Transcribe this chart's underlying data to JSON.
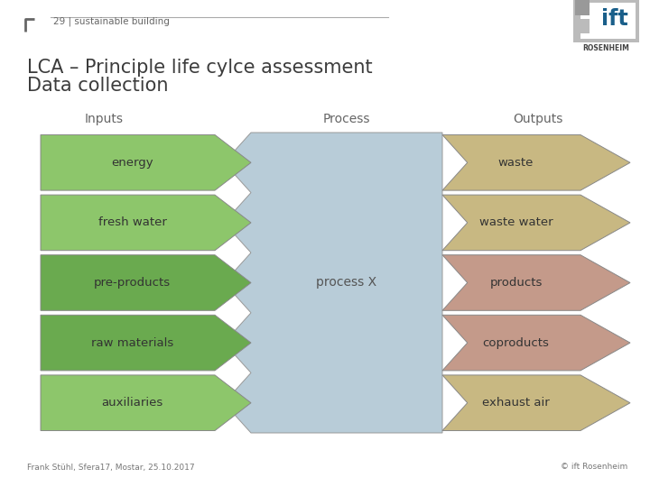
{
  "title_line1": "LCA – Principle life cylce assessment",
  "title_line2": "Data collection",
  "header_text": "29 | sustainable building",
  "inputs_label": "Inputs",
  "process_label": "Process",
  "outputs_label": "Outputs",
  "process_center_label": "process X",
  "input_items": [
    "energy",
    "fresh water",
    "pre-products",
    "raw materials",
    "auxiliaries"
  ],
  "output_items": [
    "waste",
    "waste water",
    "products",
    "coproducts",
    "exhaust air"
  ],
  "input_colors": [
    "#8dc66b",
    "#8dc66b",
    "#6aaa4f",
    "#6aaa4f",
    "#8dc66b"
  ],
  "output_colors": [
    "#c8b882",
    "#c8b882",
    "#c49a8a",
    "#c49a8a",
    "#c8b882"
  ],
  "process_color": "#b8ccd8",
  "bg_color": "#ffffff",
  "footer_left": "Frank Stühl, Sfera17, Mostar, 25.10.2017",
  "footer_right": "© ift Rosenheim",
  "title_color": "#3c3c3c",
  "label_color": "#666666"
}
